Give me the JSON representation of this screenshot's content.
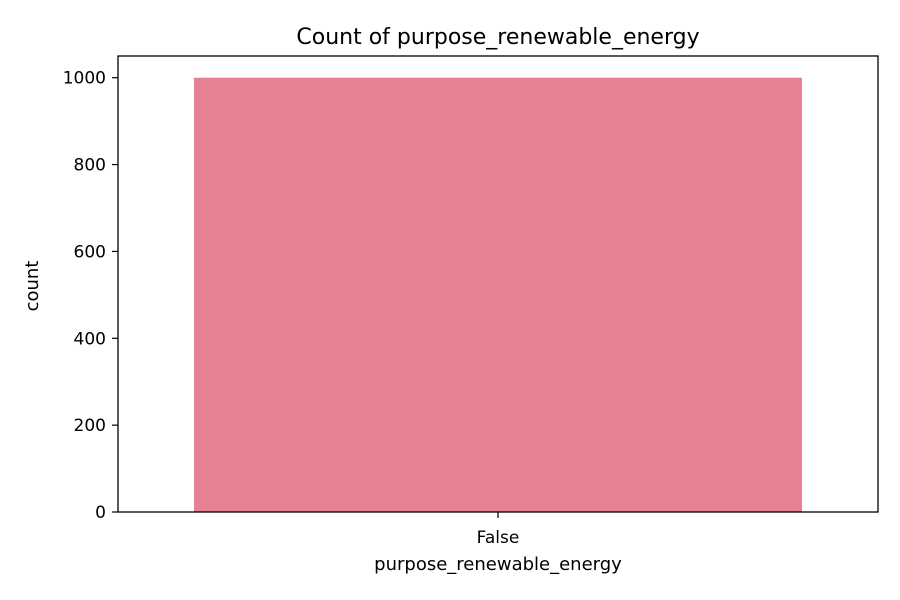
{
  "chart_data": {
    "type": "bar",
    "title": "Count of purpose_renewable_energy",
    "xlabel": "purpose_renewable_energy",
    "ylabel": "count",
    "categories": [
      "False"
    ],
    "values": [
      1000
    ],
    "ylim": [
      0,
      1050
    ],
    "yticks": [
      0,
      200,
      400,
      600,
      800,
      1000
    ],
    "grid": false,
    "colors": {
      "bar": "#e68193",
      "axis": "#000000",
      "background": "#ffffff"
    }
  }
}
